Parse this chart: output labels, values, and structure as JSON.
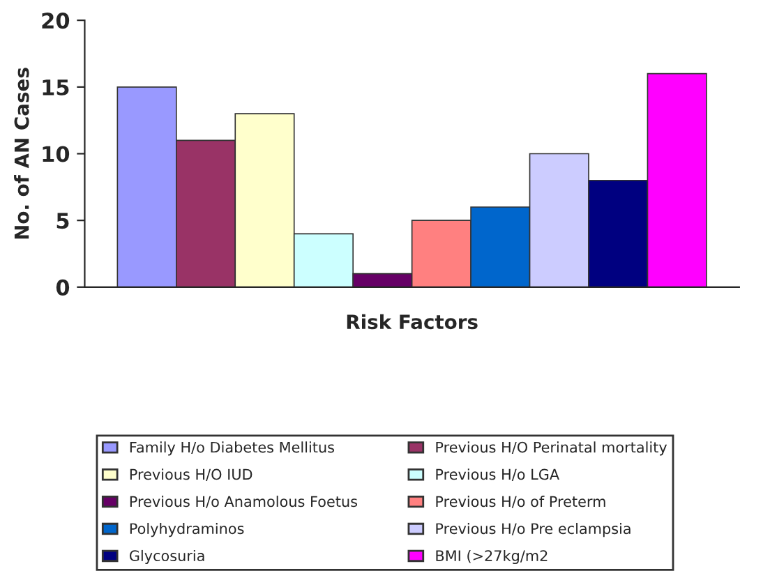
{
  "chart_data": {
    "type": "bar",
    "xlabel": "Risk Factors",
    "ylabel": "No. of AN Cases",
    "categories": [
      null
    ],
    "series": [
      {
        "name": "Family H/o Diabetes Mellitus",
        "color": "#9999ff",
        "values": [
          15
        ]
      },
      {
        "name": "Previous H/O Perinatal mortality",
        "color": "#993366",
        "values": [
          11
        ]
      },
      {
        "name": "Previous H/O IUD",
        "color": "#ffffcc",
        "values": [
          13
        ]
      },
      {
        "name": "Previous H/o LGA",
        "color": "#ccffff",
        "values": [
          4
        ]
      },
      {
        "name": "Previous H/o Anamolous Foetus",
        "color": "#660066",
        "values": [
          1
        ]
      },
      {
        "name": "Previous H/o of Preterm",
        "color": "#ff8080",
        "values": [
          5
        ]
      },
      {
        "name": "Polyhydraminos",
        "color": "#0066cc",
        "values": [
          6
        ]
      },
      {
        "name": "Previous H/o Pre eclampsia",
        "color": "#ccccff",
        "values": [
          10
        ]
      },
      {
        "name": "Glycosuria",
        "color": "#000080",
        "values": [
          8
        ]
      },
      {
        "name": "BMI (>27kg/m2",
        "color": "#ff00ff",
        "values": [
          16
        ]
      }
    ],
    "ylim": [
      0,
      20
    ],
    "yticks": [
      0,
      5,
      10,
      15,
      20
    ],
    "grid": false,
    "legend": "bottom",
    "tick_labels": "y"
  }
}
